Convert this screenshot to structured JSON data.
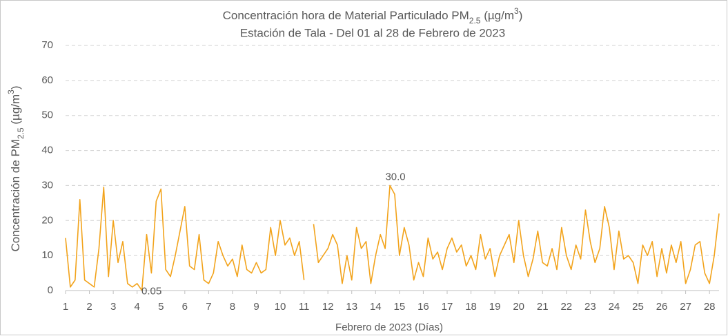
{
  "chart_data": {
    "type": "line",
    "title": [
      "Concentración hora de Material Particulado PM",
      "2.5",
      " (µg/m",
      "3",
      ")"
    ],
    "subtitle": "Estación de Tala - Del 01 al 28 de Febrero de 2023",
    "ylabel": [
      "Concentración de PM",
      "2.5",
      " (µg/m",
      "3",
      ")"
    ],
    "xlabel": "Febrero de 2023 (Días)",
    "xlim": [
      1,
      28.4
    ],
    "ylim": [
      0,
      70
    ],
    "xticks": [
      1,
      2,
      3,
      4,
      5,
      6,
      7,
      8,
      9,
      10,
      11,
      12,
      13,
      14,
      15,
      16,
      17,
      18,
      19,
      20,
      21,
      22,
      23,
      24,
      25,
      26,
      27,
      28
    ],
    "yticks": [
      0,
      10,
      20,
      30,
      40,
      50,
      60,
      70
    ],
    "grid": true,
    "color": "#f2a31b",
    "x": [
      1.0,
      1.2,
      1.4,
      1.6,
      1.8,
      2.0,
      2.2,
      2.4,
      2.6,
      2.8,
      3.0,
      3.2,
      3.4,
      3.6,
      3.8,
      4.0,
      4.2,
      4.4,
      4.6,
      4.8,
      5.0,
      5.2,
      5.4,
      5.6,
      5.8,
      6.0,
      6.2,
      6.4,
      6.6,
      6.8,
      7.0,
      7.2,
      7.4,
      7.6,
      7.8,
      8.0,
      8.2,
      8.4,
      8.6,
      8.8,
      9.0,
      9.2,
      9.4,
      9.6,
      9.8,
      10.0,
      10.2,
      10.4,
      10.6,
      10.8,
      11.0,
      11.2,
      11.4,
      11.6,
      11.8,
      12.0,
      12.2,
      12.4,
      12.6,
      12.8,
      13.0,
      13.2,
      13.4,
      13.6,
      13.8,
      14.0,
      14.2,
      14.4,
      14.6,
      14.8,
      15.0,
      15.2,
      15.4,
      15.6,
      15.8,
      16.0,
      16.2,
      16.4,
      16.6,
      16.8,
      17.0,
      17.2,
      17.4,
      17.6,
      17.8,
      18.0,
      18.2,
      18.4,
      18.6,
      18.8,
      19.0,
      19.2,
      19.4,
      19.6,
      19.8,
      20.0,
      20.2,
      20.4,
      20.6,
      20.8,
      21.0,
      21.2,
      21.4,
      21.6,
      21.8,
      22.0,
      22.2,
      22.4,
      22.6,
      22.8,
      23.0,
      23.2,
      23.4,
      23.6,
      23.8,
      24.0,
      24.2,
      24.4,
      24.6,
      24.8,
      25.0,
      25.2,
      25.4,
      25.6,
      25.8,
      26.0,
      26.2,
      26.4,
      26.6,
      26.8,
      27.0,
      27.2,
      27.4,
      27.6,
      27.8,
      28.0,
      28.2,
      28.4
    ],
    "values": [
      15,
      1,
      3,
      26,
      3,
      2,
      1,
      12,
      29.5,
      4,
      20,
      8,
      14,
      2,
      1,
      2,
      0.05,
      16,
      5,
      25.5,
      29,
      6,
      4,
      10,
      17,
      24,
      7,
      6,
      16,
      3,
      2,
      5,
      14,
      10,
      7,
      9,
      4,
      13,
      6,
      5,
      8,
      5,
      6,
      18,
      10,
      20,
      13,
      15,
      10,
      14,
      3,
      null,
      19,
      8,
      10,
      12,
      16,
      13,
      2,
      10,
      3,
      18,
      12,
      14,
      2,
      10,
      16,
      12,
      30,
      27.5,
      10,
      18,
      13,
      3,
      8,
      4,
      15,
      9,
      11,
      6,
      12,
      15,
      11,
      13,
      7,
      10,
      6,
      16,
      9,
      12,
      4,
      10,
      13,
      16,
      8,
      20,
      10,
      4,
      9,
      17,
      8,
      7,
      12,
      6,
      18,
      10,
      6,
      13,
      9,
      23,
      14,
      8,
      12,
      24,
      18,
      6,
      17,
      9,
      10,
      8,
      2,
      13,
      10,
      14,
      4,
      12,
      5,
      13,
      8,
      14,
      2,
      6,
      13,
      14,
      5,
      2,
      10,
      22
    ],
    "annotations": [
      {
        "x": 14.6,
        "value": 30,
        "label": "30.0"
      },
      {
        "x": 4.2,
        "value": 0.05,
        "label": "0.05"
      }
    ]
  }
}
